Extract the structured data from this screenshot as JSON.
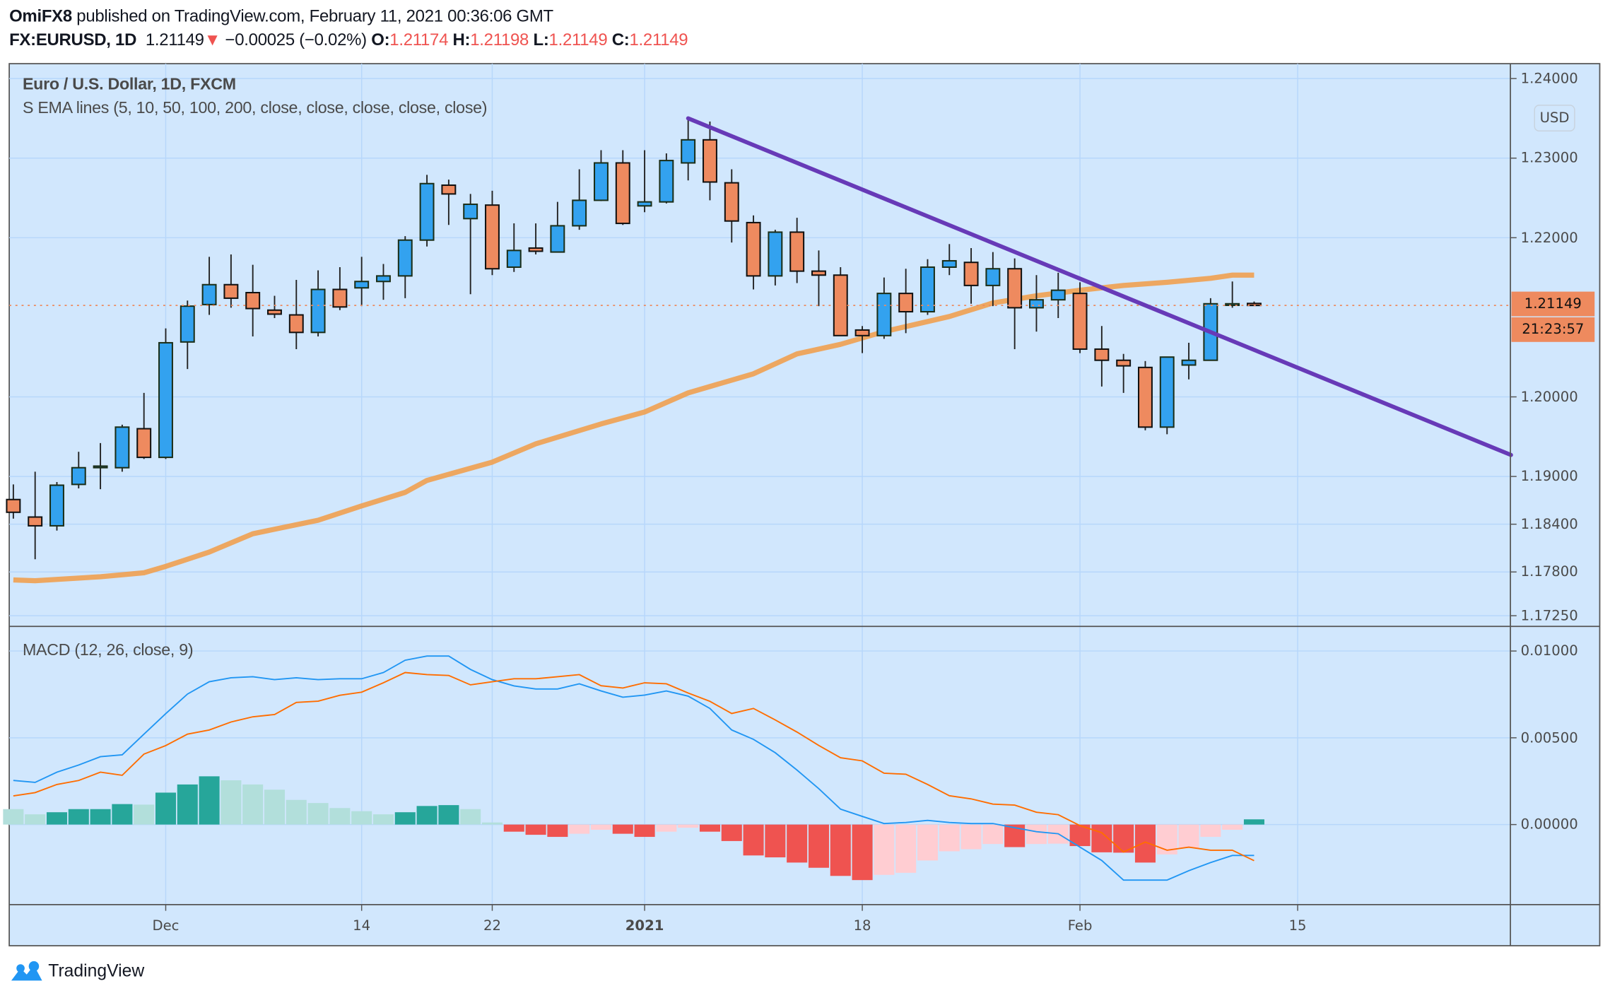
{
  "header": {
    "author": "OmiFX8",
    "published": "published on TradingView.com, February 11, 2021 00:36:06 GMT"
  },
  "quote": {
    "symbol": "FX:EURUSD, 1D",
    "last": "1.21149",
    "direction_icon": "▼",
    "change": "−0.00025 (−0.02%)",
    "o_label": "O:",
    "o": "1.21174",
    "h_label": "H:",
    "h": "1.21198",
    "l_label": "L:",
    "l": "1.21149",
    "c_label": "C:",
    "c": "1.21149"
  },
  "legend": {
    "title": "Euro / U.S. Dollar, 1D, FXCM",
    "indicator": "S EMA lines (5, 10, 50, 100, 200, close, close, close, close, close)",
    "macd": "MACD (12, 26, close, 9)"
  },
  "price_axis": {
    "currency": "USD",
    "last_price": "1.21149",
    "countdown": "21:23:57"
  },
  "footer": {
    "brand": "TradingView"
  },
  "colors": {
    "bull": "#33a2ef",
    "bear": "#ee8a5f",
    "ema": "#f0a050",
    "trendline": "#673ab7",
    "macd": "#2196f3",
    "signal": "#ff6d00",
    "hist_up_rising": "#26a69a",
    "hist_up_falling": "#b2dfdb",
    "hist_down_falling": "#ef5350",
    "hist_down_rising": "#ffcdd2",
    "background": "#d1e7fd",
    "grid": "#b7d7fb"
  },
  "chart_data": [
    {
      "type": "candlestick",
      "title": "Euro / U.S. Dollar, 1D, FXCM",
      "ylabel": "USD",
      "ylim": [
        1.1725,
        1.241
      ],
      "y_ticks": [
        "1.24000",
        "1.23000",
        "1.22000",
        "1.20000",
        "1.19000",
        "1.18400",
        "1.17800",
        "1.17250"
      ],
      "x_ticks": [
        {
          "label": "Dec",
          "bar": 7
        },
        {
          "label": "14",
          "bar": 16
        },
        {
          "label": "22",
          "bar": 22
        },
        {
          "label": "2021",
          "bar": 29,
          "bold": true
        },
        {
          "label": "18",
          "bar": 39
        },
        {
          "label": "Feb",
          "bar": 49
        },
        {
          "label": "15",
          "bar": 59
        }
      ],
      "ohlc": [
        [
          1.1871,
          1.189,
          1.1847,
          1.1855
        ],
        [
          1.1849,
          1.1906,
          1.1796,
          1.1838
        ],
        [
          1.1838,
          1.1893,
          1.1832,
          1.1889
        ],
        [
          1.189,
          1.1931,
          1.1885,
          1.1911
        ],
        [
          1.1912,
          1.1942,
          1.1884,
          1.1913
        ],
        [
          1.1911,
          1.1965,
          1.1906,
          1.1962
        ],
        [
          1.196,
          1.2005,
          1.1922,
          1.1924
        ],
        [
          1.1924,
          1.2086,
          1.1922,
          1.2068
        ],
        [
          1.2069,
          1.2121,
          1.2035,
          1.2114
        ],
        [
          1.2116,
          1.2176,
          1.2103,
          1.2141
        ],
        [
          1.2141,
          1.2179,
          1.2112,
          1.2124
        ],
        [
          1.2131,
          1.2166,
          1.2076,
          1.2111
        ],
        [
          1.2109,
          1.2127,
          1.2099,
          1.2104
        ],
        [
          1.2103,
          1.2147,
          1.206,
          1.2081
        ],
        [
          1.2081,
          1.2159,
          1.2076,
          1.2135
        ],
        [
          1.2135,
          1.2163,
          1.2109,
          1.2113
        ],
        [
          1.2137,
          1.2176,
          1.2114,
          1.2145
        ],
        [
          1.2145,
          1.2167,
          1.2122,
          1.2152
        ],
        [
          1.2152,
          1.2202,
          1.2124,
          1.2197
        ],
        [
          1.2197,
          1.2279,
          1.2189,
          1.2268
        ],
        [
          1.2266,
          1.2273,
          1.2216,
          1.2255
        ],
        [
          1.2224,
          1.2255,
          1.2129,
          1.2242
        ],
        [
          1.2241,
          1.2259,
          1.2153,
          1.2161
        ],
        [
          1.2163,
          1.2218,
          1.2157,
          1.2184
        ],
        [
          1.2187,
          1.2218,
          1.2179,
          1.2183
        ],
        [
          1.2182,
          1.2245,
          1.2182,
          1.2215
        ],
        [
          1.2215,
          1.2286,
          1.221,
          1.2247
        ],
        [
          1.2247,
          1.231,
          1.2246,
          1.2294
        ],
        [
          1.2294,
          1.231,
          1.2216,
          1.2218
        ],
        [
          1.224,
          1.231,
          1.2232,
          1.2245
        ],
        [
          1.2245,
          1.2306,
          1.2243,
          1.2297
        ],
        [
          1.2294,
          1.235,
          1.2272,
          1.2323
        ],
        [
          1.2323,
          1.2346,
          1.2247,
          1.227
        ],
        [
          1.2269,
          1.2286,
          1.2194,
          1.2221
        ],
        [
          1.2219,
          1.2228,
          1.2135,
          1.2152
        ],
        [
          1.2152,
          1.221,
          1.214,
          1.2207
        ],
        [
          1.2207,
          1.2225,
          1.2143,
          1.2158
        ],
        [
          1.2158,
          1.2184,
          1.2114,
          1.2153
        ],
        [
          1.2153,
          1.2163,
          1.2077,
          1.2077
        ],
        [
          1.2084,
          1.2089,
          1.2055,
          1.2077
        ],
        [
          1.2077,
          1.215,
          1.2073,
          1.213
        ],
        [
          1.213,
          1.2161,
          1.208,
          1.2107
        ],
        [
          1.2107,
          1.2173,
          1.2103,
          1.2163
        ],
        [
          1.2163,
          1.2192,
          1.2153,
          1.2171
        ],
        [
          1.2169,
          1.2187,
          1.2117,
          1.214
        ],
        [
          1.214,
          1.2182,
          1.2114,
          1.2161
        ],
        [
          1.2161,
          1.2174,
          1.206,
          1.2112
        ],
        [
          1.2112,
          1.2153,
          1.2082,
          1.2122
        ],
        [
          1.2122,
          1.2156,
          1.2099,
          1.2134
        ],
        [
          1.213,
          1.2144,
          1.2055,
          1.206
        ],
        [
          1.206,
          1.2089,
          1.2013,
          1.2046
        ],
        [
          1.2046,
          1.2054,
          1.2005,
          1.2039
        ],
        [
          1.2037,
          1.2045,
          1.1958,
          1.1962
        ],
        [
          1.1962,
          1.205,
          1.1953,
          1.205
        ],
        [
          1.204,
          1.2068,
          1.2022,
          1.2046
        ],
        [
          1.2046,
          1.2124,
          1.2046,
          1.2117
        ],
        [
          1.2117,
          1.2145,
          1.2112,
          1.2117
        ],
        [
          1.21174,
          1.21198,
          1.21149,
          1.21149
        ]
      ],
      "ema50": [
        [
          0,
          1.177
        ],
        [
          1,
          1.1769
        ],
        [
          4,
          1.1774
        ],
        [
          6,
          1.1779
        ],
        [
          7,
          1.1787
        ],
        [
          9,
          1.1805
        ],
        [
          11,
          1.1828
        ],
        [
          14,
          1.1845
        ],
        [
          16,
          1.1863
        ],
        [
          18,
          1.188
        ],
        [
          19,
          1.1895
        ],
        [
          22,
          1.1918
        ],
        [
          24,
          1.1941
        ],
        [
          27,
          1.1966
        ],
        [
          29,
          1.1981
        ],
        [
          31,
          1.2005
        ],
        [
          34,
          1.2029
        ],
        [
          36,
          1.2054
        ],
        [
          38,
          1.2066
        ],
        [
          40,
          1.2082
        ],
        [
          43,
          1.2101
        ],
        [
          45,
          1.2118
        ],
        [
          47,
          1.2127
        ],
        [
          49,
          1.2134
        ],
        [
          51,
          1.214
        ],
        [
          53,
          1.2144
        ],
        [
          55,
          1.2149
        ],
        [
          56,
          1.2153
        ],
        [
          57,
          1.2153
        ]
      ],
      "trendline": [
        [
          31,
          1.235
        ],
        [
          68.8,
          1.1927
        ]
      ],
      "last_price": 1.21149
    },
    {
      "type": "macd",
      "title": "MACD (12, 26, close, 9)",
      "ylim": [
        -0.0046,
        0.0108
      ],
      "y_ticks": [
        "0.01000",
        "0.00500",
        "0.00000"
      ],
      "macd": [
        0.00254,
        0.00243,
        0.00302,
        0.00343,
        0.00391,
        0.00402,
        0.00521,
        0.00639,
        0.00752,
        0.00823,
        0.00846,
        0.00852,
        0.00835,
        0.00846,
        0.00835,
        0.0084,
        0.0084,
        0.00876,
        0.00947,
        0.00971,
        0.00971,
        0.00894,
        0.00835,
        0.00799,
        0.00781,
        0.00781,
        0.00811,
        0.0077,
        0.00734,
        0.00746,
        0.0077,
        0.0074,
        0.00669,
        0.00545,
        0.00491,
        0.00414,
        0.00314,
        0.00207,
        0.00089,
        0.00047,
        6e-05,
        0.00012,
        0.00024,
        0.00012,
        6e-05,
        6e-05,
        -0.00018,
        -0.00041,
        -0.00053,
        -0.0013,
        -0.00207,
        -0.0032,
        -0.0032,
        -0.0032,
        -0.00266,
        -0.00219,
        -0.00178,
        -0.00178
      ],
      "histogram": [
        0.00089,
        0.00059,
        0.00071,
        0.00089,
        0.00089,
        0.00118,
        0.00115,
        0.00184,
        0.00231,
        0.00278,
        0.00255,
        0.00231,
        0.00201,
        0.00142,
        0.00124,
        0.00095,
        0.00077,
        0.00059,
        0.00071,
        0.00107,
        0.00112,
        0.00089,
        0.00012,
        -0.00041,
        -0.00059,
        -0.00071,
        -0.00053,
        -0.0003,
        -0.00053,
        -0.00071,
        -0.00041,
        -0.00018,
        -0.00041,
        -0.00095,
        -0.00178,
        -0.00189,
        -0.00219,
        -0.00249,
        -0.00296,
        -0.0032,
        -0.0029,
        -0.00278,
        -0.00207,
        -0.00154,
        -0.00142,
        -0.00112,
        -0.0013,
        -0.00112,
        -0.0011,
        -0.00124,
        -0.0016,
        -0.00162,
        -0.00219,
        -0.00172,
        -0.00136,
        -0.00071,
        -0.0003,
        0.0003
      ]
    }
  ]
}
